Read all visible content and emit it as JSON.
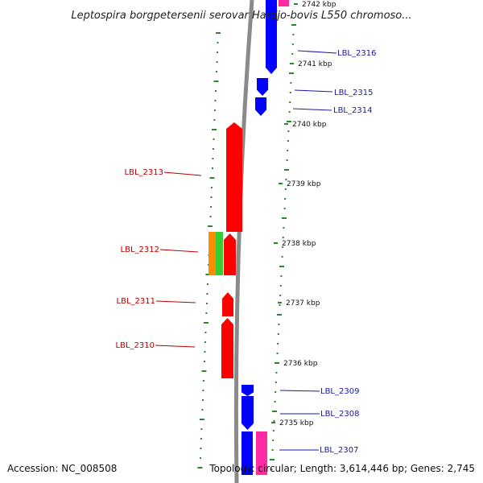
{
  "title": "Leptospira borgpetersenii serovar Hardjo-bovis L550 chromoso...",
  "accession": "Accession: NC_008508",
  "topology": "Topology: circular; Length: 3,614,446 bp; Genes: 2,745",
  "colors": {
    "forward_label": "#1a1aa6",
    "reverse_label": "#b50000",
    "forward_cds": "#0000ff",
    "reverse_cds": "#ff0000",
    "pink_feature": "#ff2ba3",
    "orange_feature": "#ff8c00",
    "green_feature": "#33cc33",
    "backbone": "#8a8a8a",
    "gc_ticks": "#2a8a2a"
  },
  "ticks": [
    {
      "label": "2742 kbp",
      "kbp": 2742
    },
    {
      "label": "2741 kbp",
      "kbp": 2741
    },
    {
      "label": "2740 kbp",
      "kbp": 2740
    },
    {
      "label": "2739 kbp",
      "kbp": 2739
    },
    {
      "label": "2738 kbp",
      "kbp": 2738
    },
    {
      "label": "2737 kbp",
      "kbp": 2737
    },
    {
      "label": "2736 kbp",
      "kbp": 2736
    },
    {
      "label": "2735 kbp",
      "kbp": 2735
    }
  ],
  "genes": [
    {
      "label": "LBL_2316",
      "strand": "forward"
    },
    {
      "label": "LBL_2315",
      "strand": "forward"
    },
    {
      "label": "LBL_2314",
      "strand": "forward"
    },
    {
      "label": "LBL_2313",
      "strand": "reverse"
    },
    {
      "label": "LBL_2312",
      "strand": "reverse"
    },
    {
      "label": "LBL_2311",
      "strand": "reverse"
    },
    {
      "label": "LBL_2310",
      "strand": "reverse"
    },
    {
      "label": "LBL_2309",
      "strand": "forward"
    },
    {
      "label": "LBL_2308",
      "strand": "forward"
    },
    {
      "label": "LBL_2307",
      "strand": "forward"
    }
  ]
}
